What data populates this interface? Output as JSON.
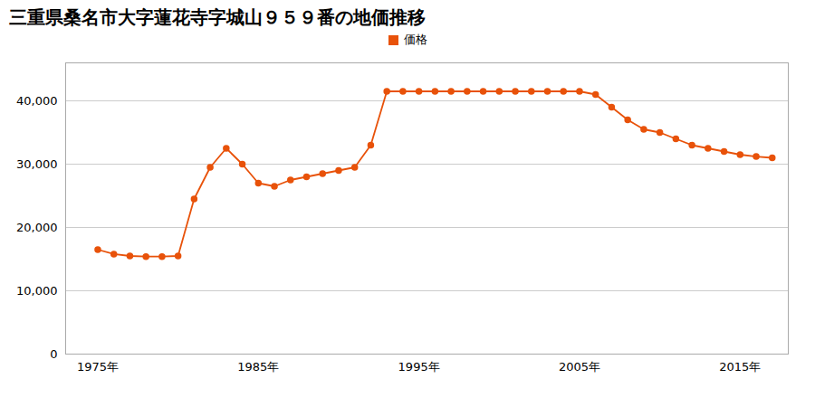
{
  "chart_data": {
    "type": "line",
    "title": "三重県桑名市大字蓮花寺字城山９５９番の地価推移",
    "x": [
      1975,
      1976,
      1977,
      1978,
      1979,
      1980,
      1981,
      1982,
      1983,
      1984,
      1985,
      1986,
      1987,
      1988,
      1989,
      1990,
      1991,
      1992,
      1993,
      1994,
      1995,
      1996,
      1997,
      1998,
      1999,
      2000,
      2001,
      2002,
      2003,
      2004,
      2005,
      2006,
      2007,
      2008,
      2009,
      2010,
      2011,
      2012,
      2013,
      2014,
      2015,
      2016,
      2017
    ],
    "series": [
      {
        "name": "価格",
        "color": "#E8520A",
        "marker": "circle",
        "values": [
          16500,
          15800,
          15500,
          15400,
          15400,
          15500,
          24500,
          29500,
          32500,
          30000,
          27000,
          26500,
          27500,
          28000,
          28500,
          29000,
          29500,
          33000,
          41500,
          41500,
          41500,
          41500,
          41500,
          41500,
          41500,
          41500,
          41500,
          41500,
          41500,
          41500,
          41500,
          41000,
          39000,
          37000,
          35500,
          35000,
          34000,
          33000,
          32500,
          32000,
          31500,
          31200,
          31000
        ]
      }
    ],
    "xlim": [
      1973,
      2018
    ],
    "xticks": [
      {
        "value": 1975,
        "label": "1975年"
      },
      {
        "value": 1985,
        "label": "1985年"
      },
      {
        "value": 1995,
        "label": "1995年"
      },
      {
        "value": 2005,
        "label": "2005年"
      },
      {
        "value": 2015,
        "label": "2015年"
      }
    ],
    "ylim": [
      0,
      46000
    ],
    "yticks": [
      0,
      {
        "value": 10000,
        "label": "10,000"
      },
      {
        "value": 20000,
        "label": "20,000"
      },
      {
        "value": 30000,
        "label": "30,000"
      },
      {
        "value": 40000,
        "label": "40,000"
      }
    ],
    "grid": true,
    "legend": "top"
  }
}
